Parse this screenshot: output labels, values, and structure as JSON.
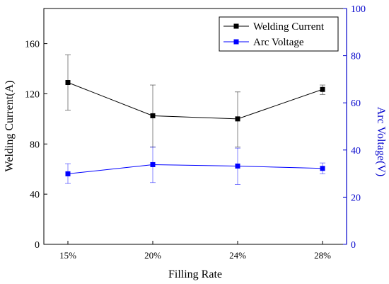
{
  "chart_data": {
    "type": "line",
    "categories": [
      "15%",
      "20%",
      "24%",
      "28%"
    ],
    "xlabel": "Filling Rate",
    "ylabel_left": "Welding Current(A)",
    "ylabel_right": "Arc Voltage(V)",
    "ylim_left": [
      0,
      188
    ],
    "yticks_left": [
      0,
      40,
      80,
      120,
      160
    ],
    "ylim_right": [
      0,
      100
    ],
    "yticks_right": [
      0,
      20,
      40,
      60,
      80,
      100
    ],
    "grid": false,
    "legend": "top-right",
    "colors": {
      "welding_current": "#000000",
      "arc_voltage": "#0000ff",
      "right_axis": "#0000cc"
    },
    "series": [
      {
        "name": "Welding Current",
        "axis": "left",
        "values": [
          129,
          102.5,
          100,
          123.5
        ],
        "err_low": [
          107,
          77.5,
          77.5,
          119.5
        ],
        "err_high": [
          151,
          127,
          121.5,
          127
        ]
      },
      {
        "name": "Arc Voltage",
        "axis": "right",
        "values": [
          29.9,
          33.8,
          33.2,
          32.2
        ],
        "err_low": [
          25.8,
          26.2,
          25.4,
          29.9
        ],
        "err_high": [
          34.2,
          41.2,
          40.8,
          34.5
        ]
      }
    ]
  }
}
